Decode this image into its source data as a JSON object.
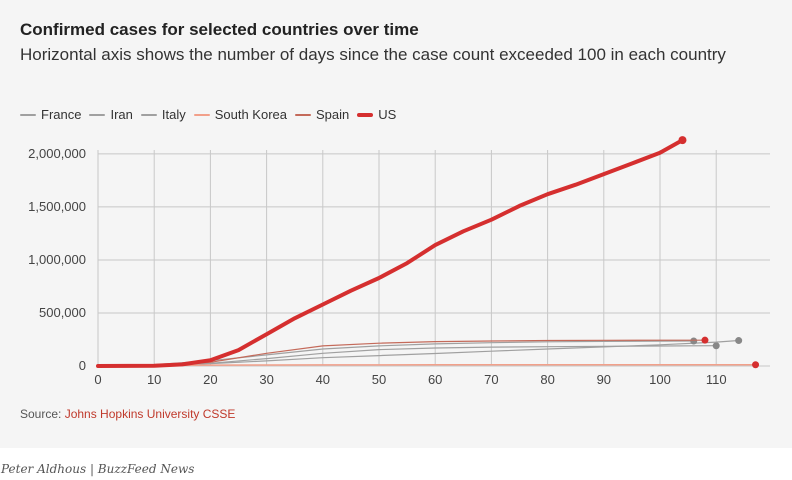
{
  "title": "Confirmed cases for selected countries over time",
  "subtitle": "Horizontal axis shows the number of days since the case count exceeded 100 in each country",
  "source_label": "Source: ",
  "source_link": "Johns Hopkins University CSSE",
  "credit": "Peter Aldhous | BuzzFeed News",
  "colors": {
    "us": "#d52f2f",
    "other": "#a0a0a0",
    "spain": "#c46a5a",
    "south_korea": "#f2a08a",
    "grid": "#c8c8c8",
    "panel": "#f5f5f5"
  },
  "chart_data": {
    "type": "line",
    "title": "Confirmed cases for selected countries over time",
    "xlabel": "",
    "ylabel": "",
    "xlim": [
      -2,
      120
    ],
    "ylim": [
      0,
      2150000
    ],
    "x_ticks": [
      0,
      10,
      20,
      30,
      40,
      50,
      60,
      70,
      80,
      90,
      100,
      110
    ],
    "y_ticks": [
      0,
      500000,
      1000000,
      1500000,
      2000000
    ],
    "y_tick_labels": [
      "0",
      "500,000",
      "1,000,000",
      "1,500,000",
      "2,000,000"
    ],
    "grid": true,
    "legend_position": "top-left",
    "series": [
      {
        "name": "France",
        "x": [
          0,
          10,
          20,
          30,
          40,
          50,
          60,
          70,
          80,
          90,
          100,
          110
        ],
        "y": [
          0,
          2500,
          25000,
          70000,
          120000,
          155000,
          170000,
          178000,
          182000,
          186000,
          189000,
          191000
        ]
      },
      {
        "name": "Iran",
        "x": [
          0,
          10,
          20,
          30,
          40,
          50,
          60,
          70,
          80,
          90,
          100,
          110,
          114
        ],
        "y": [
          0,
          5000,
          23000,
          48000,
          78000,
          98000,
          118000,
          140000,
          160000,
          180000,
          200000,
          225000,
          240000
        ]
      },
      {
        "name": "Italy",
        "x": [
          0,
          10,
          20,
          30,
          40,
          50,
          60,
          70,
          80,
          90,
          100,
          106
        ],
        "y": [
          0,
          12000,
          50000,
          105000,
          160000,
          190000,
          208000,
          220000,
          228000,
          232000,
          235000,
          236000
        ]
      },
      {
        "name": "South Korea",
        "x": [
          0,
          10,
          20,
          30,
          40,
          50,
          60,
          70,
          80,
          90,
          100,
          110,
          117
        ],
        "y": [
          0,
          7000,
          8500,
          9800,
          10500,
          10800,
          11000,
          11100,
          11300,
          11500,
          11800,
          12000,
          12100
        ]
      },
      {
        "name": "Spain",
        "x": [
          0,
          10,
          20,
          30,
          40,
          50,
          60,
          70,
          80,
          90,
          100,
          108
        ],
        "y": [
          0,
          3000,
          35000,
          120000,
          190000,
          215000,
          230000,
          236000,
          240000,
          242000,
          243000,
          243500
        ]
      },
      {
        "name": "US",
        "x": [
          0,
          10,
          15,
          20,
          25,
          30,
          35,
          40,
          45,
          50,
          55,
          60,
          65,
          70,
          75,
          80,
          85,
          90,
          95,
          100,
          104
        ],
        "y": [
          0,
          3000,
          15000,
          55000,
          150000,
          300000,
          450000,
          580000,
          710000,
          830000,
          970000,
          1140000,
          1270000,
          1380000,
          1510000,
          1620000,
          1710000,
          1810000,
          1910000,
          2010000,
          2130000
        ]
      }
    ]
  }
}
